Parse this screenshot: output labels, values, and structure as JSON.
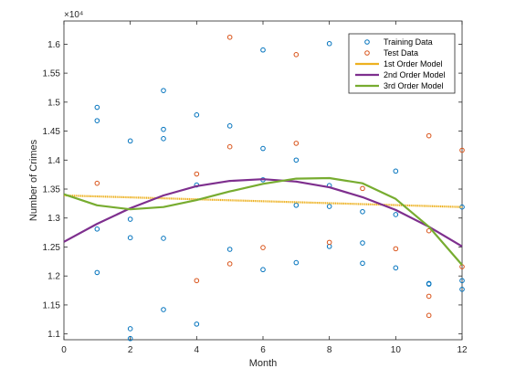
{
  "chart_data": {
    "type": "scatter",
    "title": "",
    "xlabel": "Month",
    "ylabel": "Number of Crimes",
    "y_exponent_label": "×10⁴",
    "y_multiplier": 10000,
    "xlim": [
      0,
      12
    ],
    "ylim": [
      1.09,
      1.64
    ],
    "xticks": [
      0,
      2,
      4,
      6,
      8,
      10,
      12
    ],
    "yticks": [
      1.1,
      1.15,
      1.2,
      1.25,
      1.3,
      1.35,
      1.4,
      1.45,
      1.5,
      1.55,
      1.6
    ],
    "ytick_labels": [
      "1.1",
      "1.15",
      "1.2",
      "1.25",
      "1.3",
      "1.35",
      "1.4",
      "1.45",
      "1.5",
      "1.55",
      "1.6"
    ],
    "grid": false,
    "legend_position": "top-right",
    "series": [
      {
        "name": "Training Data",
        "kind": "markers",
        "color": "#0072bd",
        "points": [
          [
            1,
            1.491
          ],
          [
            1,
            1.468
          ],
          [
            1,
            1.281
          ],
          [
            1,
            1.206
          ],
          [
            2,
            1.433
          ],
          [
            2,
            1.298
          ],
          [
            2,
            1.266
          ],
          [
            2,
            1.109
          ],
          [
            2,
            1.092
          ],
          [
            3,
            1.52
          ],
          [
            3,
            1.453
          ],
          [
            3,
            1.437
          ],
          [
            3,
            1.265
          ],
          [
            3,
            1.142
          ],
          [
            4,
            1.478
          ],
          [
            4,
            1.357
          ],
          [
            4,
            1.117
          ],
          [
            5,
            1.459
          ],
          [
            5,
            1.246
          ],
          [
            6,
            1.59
          ],
          [
            6,
            1.42
          ],
          [
            6,
            1.366
          ],
          [
            6,
            1.211
          ],
          [
            7,
            1.4
          ],
          [
            7,
            1.322
          ],
          [
            7,
            1.223
          ],
          [
            8,
            1.601
          ],
          [
            8,
            1.356
          ],
          [
            8,
            1.32
          ],
          [
            8,
            1.251
          ],
          [
            9,
            1.311
          ],
          [
            9,
            1.257
          ],
          [
            9,
            1.222
          ],
          [
            10,
            1.381
          ],
          [
            10,
            1.306
          ],
          [
            10,
            1.214
          ],
          [
            11,
            1.187
          ],
          [
            11,
            1.186
          ],
          [
            12,
            1.319
          ],
          [
            12,
            1.192
          ],
          [
            12,
            1.177
          ]
        ]
      },
      {
        "name": "Test Data",
        "kind": "markers",
        "color": "#d95319",
        "points": [
          [
            1,
            1.36
          ],
          [
            4,
            1.376
          ],
          [
            4,
            1.192
          ],
          [
            5,
            1.612
          ],
          [
            5,
            1.423
          ],
          [
            5,
            1.221
          ],
          [
            6,
            1.249
          ],
          [
            7,
            1.582
          ],
          [
            7,
            1.429
          ],
          [
            8,
            1.258
          ],
          [
            9,
            1.351
          ],
          [
            10,
            1.247
          ],
          [
            11,
            1.442
          ],
          [
            11,
            1.278
          ],
          [
            11,
            1.165
          ],
          [
            11,
            1.132
          ],
          [
            12,
            1.417
          ],
          [
            12,
            1.216
          ]
        ]
      },
      {
        "name": "1st Order Model",
        "kind": "line",
        "color": "#edb120",
        "x": [
          0,
          12
        ],
        "y": [
          1.339,
          1.319
        ]
      },
      {
        "name": "2nd Order Model",
        "kind": "line",
        "color": "#7e2f8e",
        "x": [
          0,
          1,
          2,
          3,
          4,
          5,
          6,
          7,
          8,
          9,
          10,
          11,
          12
        ],
        "y": [
          1.259,
          1.29,
          1.317,
          1.339,
          1.355,
          1.364,
          1.367,
          1.363,
          1.353,
          1.336,
          1.314,
          1.285,
          1.251
        ]
      },
      {
        "name": "3rd Order Model",
        "kind": "line",
        "color": "#77ac30",
        "x": [
          0,
          1,
          2,
          3,
          4,
          5,
          6,
          7,
          8,
          9,
          10,
          11,
          12
        ],
        "y": [
          1.341,
          1.322,
          1.315,
          1.319,
          1.331,
          1.346,
          1.359,
          1.368,
          1.369,
          1.36,
          1.333,
          1.285,
          1.219
        ]
      }
    ]
  }
}
